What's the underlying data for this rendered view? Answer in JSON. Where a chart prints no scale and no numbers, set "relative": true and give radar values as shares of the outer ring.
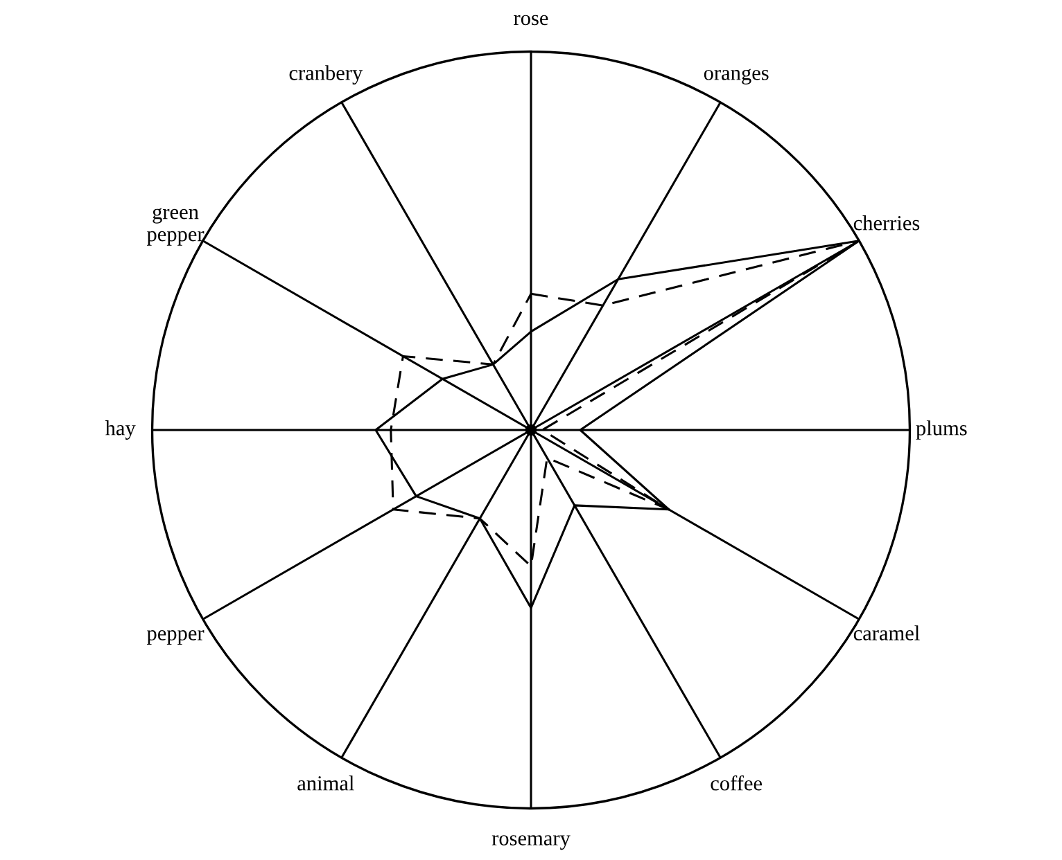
{
  "chart_data": {
    "type": "radar",
    "relative": true,
    "grid": true,
    "marker": "none",
    "categories": [
      "rose",
      "oranges",
      "cherries",
      "plums",
      "caramel",
      "coffee",
      "rosemary",
      "animal",
      "pepper",
      "hay",
      "green pepper",
      "cranbery"
    ],
    "series": [
      {
        "color": "#000000",
        "line_style": "solid",
        "values": [
          0.26,
          0.46,
          1.0,
          0.13,
          0.42,
          0.23,
          0.47,
          0.27,
          0.35,
          0.41,
          0.27,
          0.2
        ]
      },
      {
        "color": "#000000",
        "line_style": "dashed",
        "values": [
          0.36,
          0.38,
          1.0,
          0.03,
          0.42,
          0.085,
          0.36,
          0.27,
          0.42,
          0.37,
          0.39,
          0.2
        ]
      }
    ]
  }
}
